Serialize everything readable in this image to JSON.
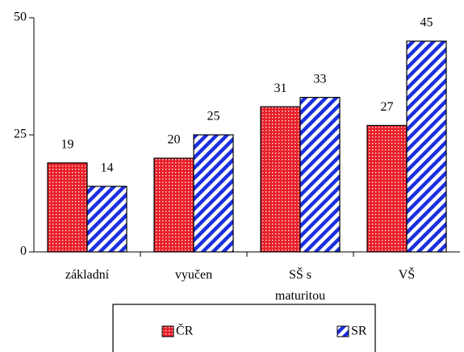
{
  "chart_data": {
    "type": "bar",
    "categories": [
      "základní",
      "vyučen",
      "SŠ s maturitou",
      "VŠ"
    ],
    "series": [
      {
        "name": "ČR",
        "color": "#e8202a",
        "values": [
          19,
          20,
          31,
          27
        ]
      },
      {
        "name": "SR",
        "color": "#1c2fe0",
        "values": [
          14,
          25,
          33,
          45
        ]
      }
    ],
    "ylim": [
      0,
      50
    ],
    "yticks": [
      0,
      25,
      50
    ],
    "grid": false,
    "legend": "bottom"
  }
}
